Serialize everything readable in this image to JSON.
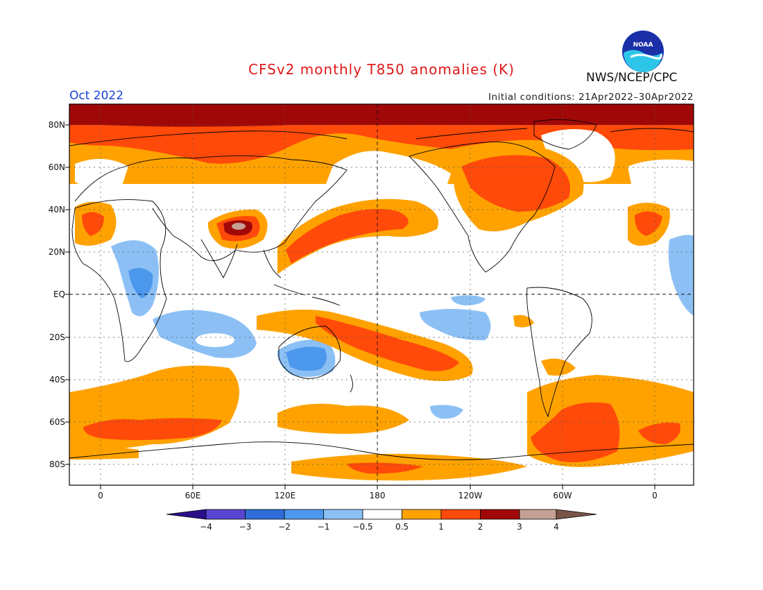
{
  "header": {
    "title": "CFSv2 monthly T850 anomalies (K)",
    "org": "NWS/NCEP/CPC",
    "logo_text": "NOAA",
    "month": "Oct 2022",
    "initial_conditions": "Initial conditions: 21Apr2022–30Apr2022"
  },
  "map": {
    "lat_labels": [
      "80N",
      "60N",
      "40N",
      "20N",
      "EQ",
      "20S",
      "40S",
      "60S",
      "80S"
    ],
    "lon_labels": [
      "0",
      "60E",
      "120E",
      "180",
      "120W",
      "60W",
      "0"
    ]
  },
  "colorbar": {
    "labels": [
      "−4",
      "−3",
      "−2",
      "−1",
      "−0.5",
      "0.5",
      "1",
      "2",
      "3",
      "4"
    ],
    "colors": [
      "#2a0f8a",
      "#5a45d0",
      "#2f6ed8",
      "#4c98ec",
      "#8cc0f5",
      "#ffffff",
      "#ffa200",
      "#ff4a0a",
      "#a00808",
      "#c4a094",
      "#7a5448"
    ]
  }
}
